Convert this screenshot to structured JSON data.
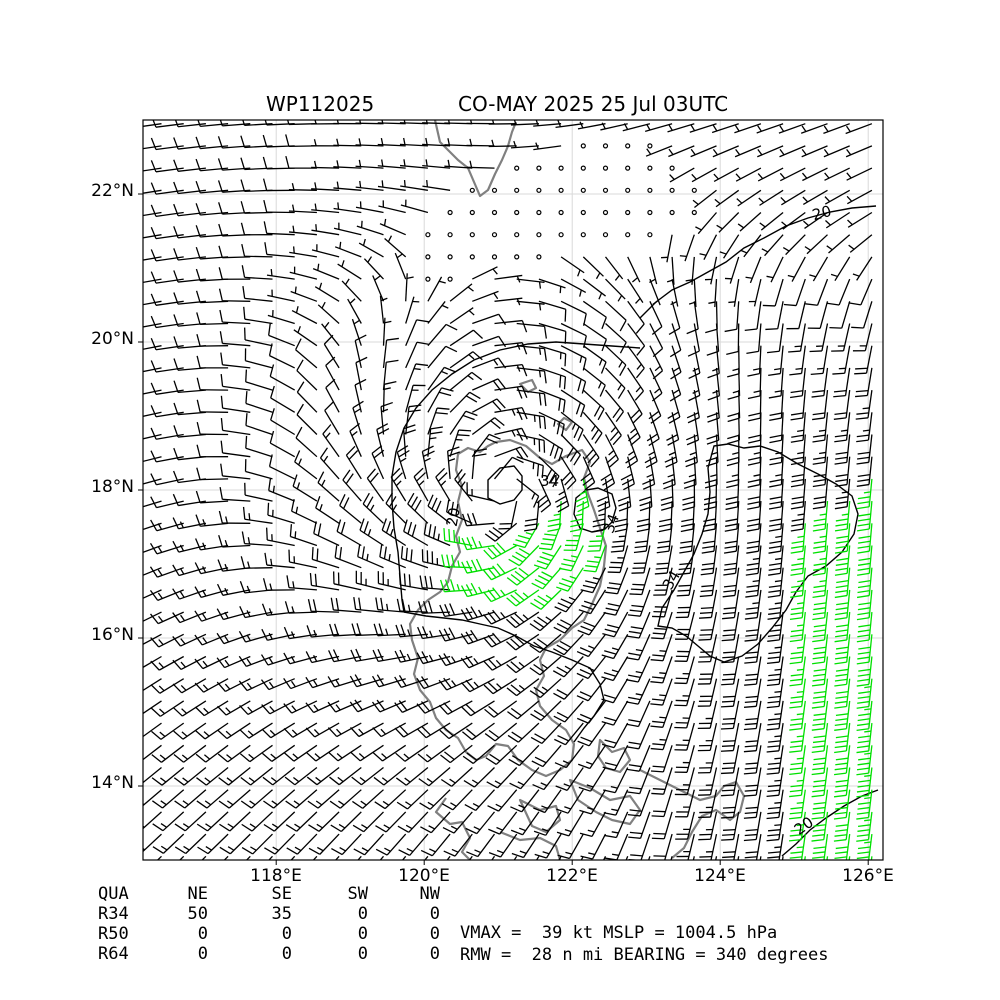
{
  "title": {
    "storm_id": "WP112025",
    "storm_info": "CO-MAY 2025 25 Jul 03UTC"
  },
  "axes": {
    "lat_ticks": [
      "22°N",
      "20°N",
      "18°N",
      "16°N",
      "14°N"
    ],
    "lon_ticks": [
      "118°E",
      "120°E",
      "122°E",
      "124°E",
      "126°E"
    ]
  },
  "radii_table": {
    "header": [
      "QUA",
      "NE",
      "SE",
      "SW",
      "NW"
    ],
    "rows": [
      [
        "R34",
        "50",
        "35",
        "0",
        "0"
      ],
      [
        "R50",
        "0",
        "0",
        "0",
        "0"
      ],
      [
        "R64",
        "0",
        "0",
        "0",
        "0"
      ]
    ]
  },
  "info": {
    "line1": "VMAX =  39 kt MSLP = 1004.5 hPa",
    "line2": "RMW =  28 n mi BEARING = 340 degrees"
  },
  "contour_labels": [
    "20",
    "34",
    "34",
    "34",
    "20",
    "20"
  ],
  "colors": {
    "below_34kt": "#000000",
    "gale_34_50kt": "#00e000",
    "storm_50kt_plus": "#e8b400",
    "coastline": "#808080",
    "grid": "#d9d9d9"
  },
  "chart_data": {
    "type": "wind-barb-map",
    "title": "WP112025          CO-MAY 2025 25 Jul 03UTC",
    "lon_range": [
      116.2,
      126.2
    ],
    "lat_range": [
      13.0,
      23.0
    ],
    "storm_center": {
      "lon": 121.1,
      "lat": 17.9
    },
    "vmax_kt": 39,
    "mslp_hpa": 1004.5,
    "rmw_nmi": 28,
    "bearing_deg": 340,
    "wind_speed_contours_kt": [
      20,
      34
    ],
    "barb_color_bins": [
      {
        "range_kt": "<34",
        "color": "#000000"
      },
      {
        "range_kt": "34-50",
        "color": "#00e000"
      },
      {
        "range_kt": ">=50",
        "color": "#e8b400"
      }
    ],
    "r34_nmi": {
      "NE": 50,
      "SE": 35,
      "SW": 0,
      "NW": 0
    },
    "r50_nmi": {
      "NE": 0,
      "SE": 0,
      "SW": 0,
      "NW": 0
    },
    "r64_nmi": {
      "NE": 0,
      "SE": 0,
      "SW": 0,
      "NW": 0
    }
  }
}
